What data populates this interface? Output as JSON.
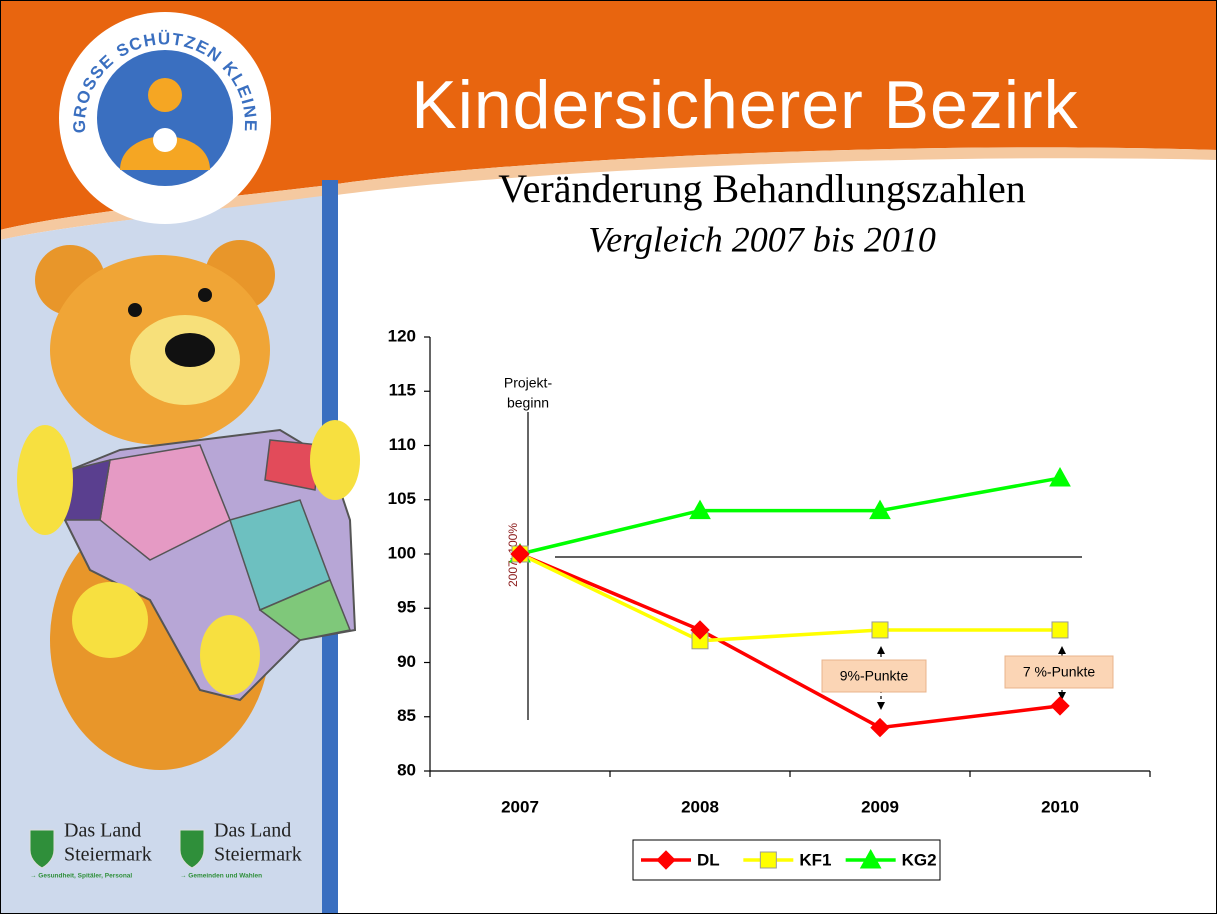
{
  "header": {
    "title": "Kindersicherer Bezirk",
    "logo_text": "GROSSE SCHÜTZEN KLEINE"
  },
  "sidebar": {
    "logos": [
      {
        "line1": "Das Land",
        "line2": "Steiermark",
        "sub": "→ Gesundheit, Spitäler, Personal"
      },
      {
        "line1": "Das Land",
        "line2": "Steiermark",
        "sub": "→ Gemeinden und Wahlen"
      }
    ]
  },
  "chart_data": {
    "type": "line",
    "title": "Veränderung Behandlungszahlen",
    "subtitle": "Vergleich 2007 bis 2010",
    "categories": [
      "2007",
      "2008",
      "2009",
      "2010"
    ],
    "series": [
      {
        "name": "DL",
        "color": "#ff0000",
        "marker": "diamond",
        "values": [
          100,
          93,
          84,
          86
        ]
      },
      {
        "name": "KF1",
        "color": "#ffff00",
        "marker": "square",
        "values": [
          100,
          92,
          93,
          93
        ]
      },
      {
        "name": "KG2",
        "color": "#00ff00",
        "marker": "triangle",
        "values": [
          100,
          104,
          104,
          107
        ]
      }
    ],
    "ylim": [
      80,
      120
    ],
    "yticks": [
      80,
      85,
      90,
      95,
      100,
      105,
      110,
      115,
      120
    ],
    "legend": "bottom",
    "annotations": {
      "project_start": [
        "Projekt-",
        "beginn"
      ],
      "baseline": "2007: 100%",
      "gaps": [
        "9%-Punkte",
        "7 %-Punkte"
      ]
    }
  }
}
